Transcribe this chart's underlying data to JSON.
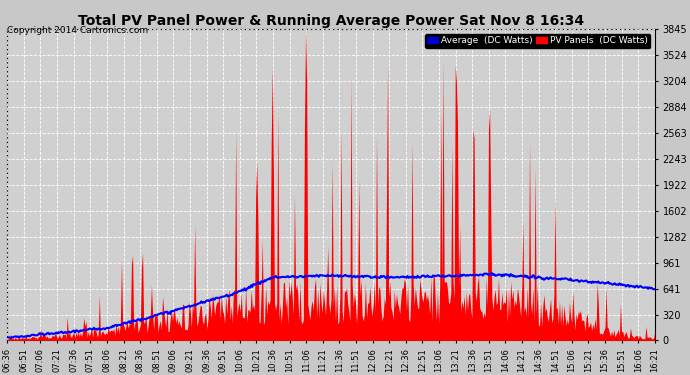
{
  "title": "Total PV Panel Power & Running Average Power Sat Nov 8 16:34",
  "copyright": "Copyright 2014 Cartronics.com",
  "legend_avg": "Average  (DC Watts)",
  "legend_pv": "PV Panels  (DC Watts)",
  "ymax": 3844.8,
  "ymin": 0.0,
  "yticks": [
    0.0,
    320.4,
    640.8,
    961.2,
    1281.6,
    1602.0,
    1922.4,
    2242.8,
    2563.2,
    2883.6,
    3204.0,
    3524.4,
    3844.8
  ],
  "bg_color": "#c8c8c8",
  "plot_bg_color": "#d0d0d0",
  "grid_color": "#ffffff",
  "bar_color": "#ff0000",
  "avg_line_color": "#0000ff",
  "title_color": "#000000",
  "num_points": 585,
  "xtick_labels": [
    "06:36",
    "06:51",
    "07:06",
    "07:21",
    "07:36",
    "07:51",
    "08:06",
    "08:21",
    "08:36",
    "08:51",
    "09:06",
    "09:21",
    "09:36",
    "09:51",
    "10:06",
    "10:21",
    "10:36",
    "10:51",
    "11:06",
    "11:21",
    "11:36",
    "11:51",
    "12:06",
    "12:21",
    "12:36",
    "12:51",
    "13:06",
    "13:21",
    "13:36",
    "13:51",
    "14:06",
    "14:21",
    "14:36",
    "14:51",
    "15:06",
    "15:21",
    "15:36",
    "15:51",
    "16:06",
    "16:21"
  ]
}
